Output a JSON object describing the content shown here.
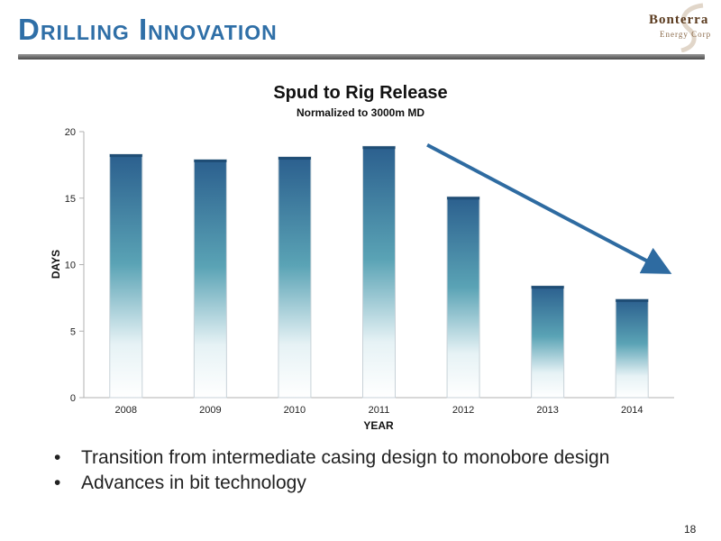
{
  "slide": {
    "title": "Drilling Innovation",
    "page_number": "18",
    "logo_text": "Bonterra",
    "logo_subtext": "Energy Corp",
    "bullets": [
      "Transition from intermediate casing design to monobore design",
      "Advances in bit technology"
    ]
  },
  "colors": {
    "title": "#2f6fa7",
    "bar_top": "#2b5f8e",
    "bar_mid": "#5aa3b5",
    "arrow": "#2e6ba1"
  },
  "chart_data": {
    "type": "bar",
    "title": "Spud to Rig Release",
    "subtitle": "Normalized to 3000m MD",
    "xlabel": "YEAR",
    "ylabel": "DAYS",
    "categories": [
      "2008",
      "2009",
      "2010",
      "2011",
      "2012",
      "2013",
      "2014"
    ],
    "values": [
      18.3,
      17.9,
      18.1,
      18.9,
      15.1,
      8.4,
      7.4
    ],
    "ylim": [
      0,
      20
    ],
    "yticks": [
      0,
      5,
      10,
      15,
      20
    ],
    "grid": false,
    "legend": "none",
    "annotations": [
      {
        "type": "trend-arrow",
        "from_x": "2012",
        "from_y": 19.0,
        "to_x": "2014",
        "to_y": 9.8
      }
    ]
  }
}
